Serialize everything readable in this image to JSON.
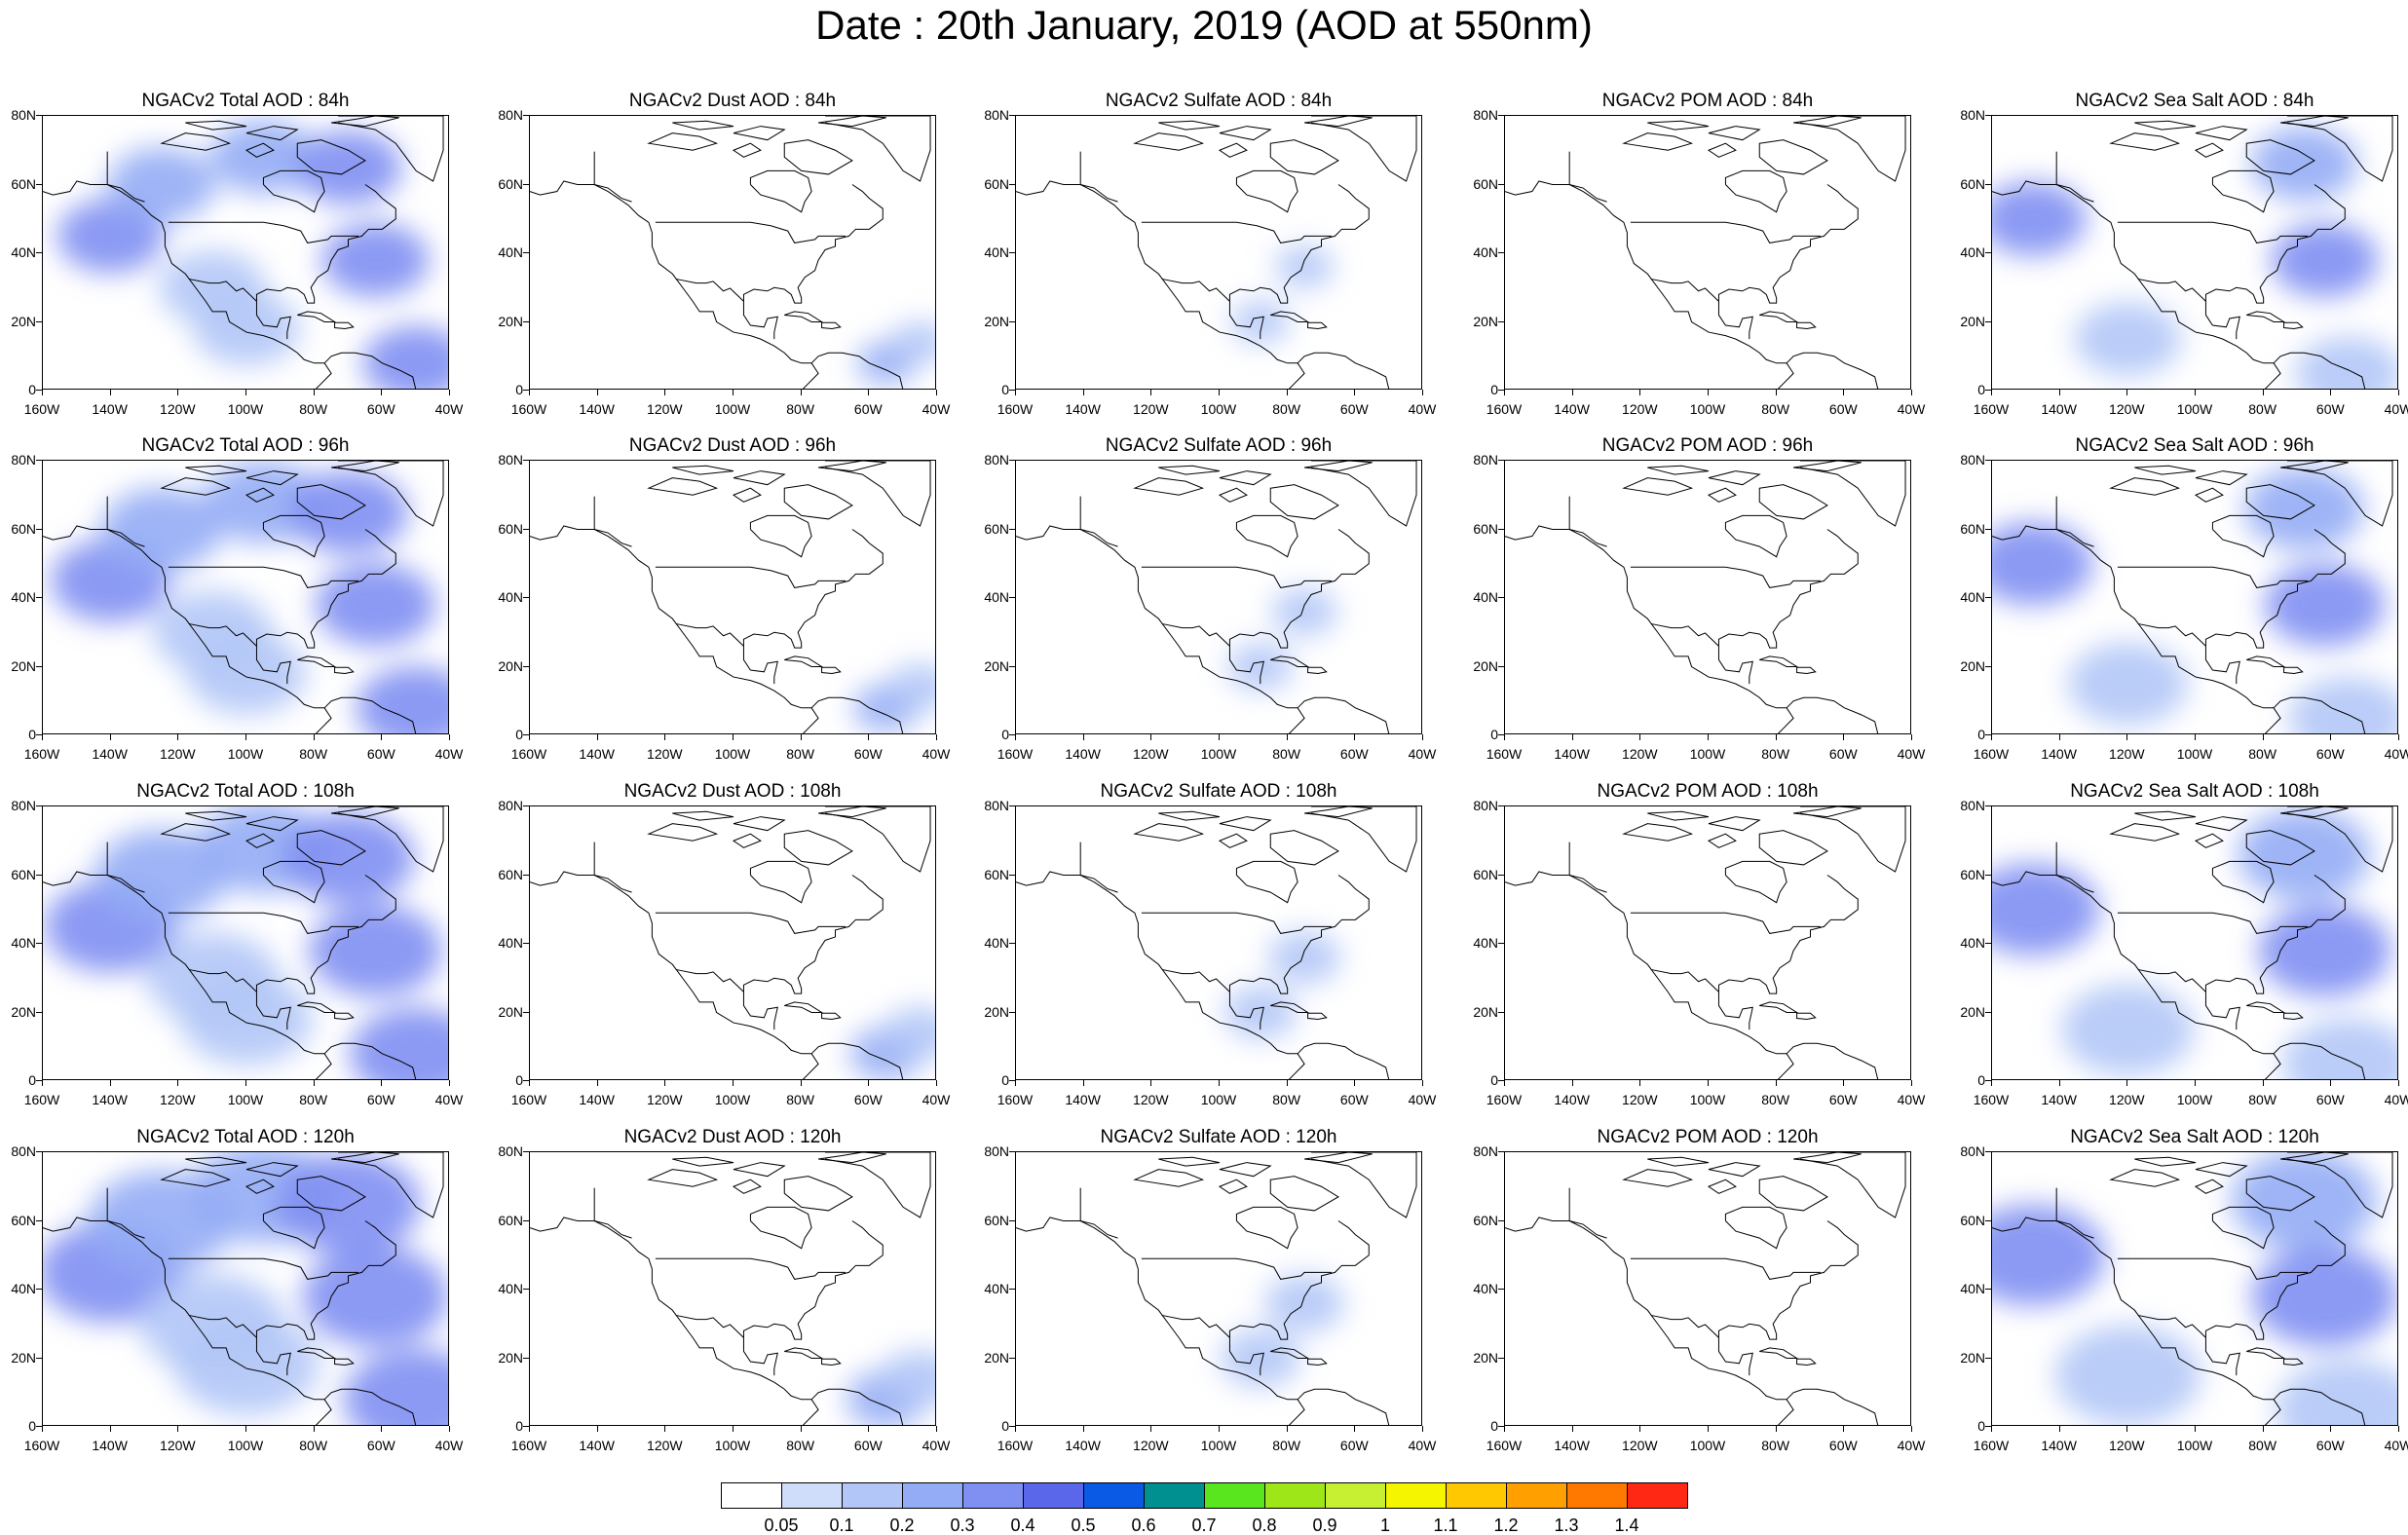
{
  "title": "Date : 20th January, 2019 (AOD at 550nm)",
  "panels": [
    [
      "NGACv2 Total AOD : 84h",
      "NGACv2 Dust AOD : 84h",
      "NGACv2 Sulfate AOD : 84h",
      "NGACv2 POM AOD : 84h",
      "NGACv2 Sea Salt AOD : 84h"
    ],
    [
      "NGACv2 Total AOD : 96h",
      "NGACv2 Dust AOD : 96h",
      "NGACv2 Sulfate AOD : 96h",
      "NGACv2 POM AOD : 96h",
      "NGACv2 Sea Salt AOD : 96h"
    ],
    [
      "NGACv2 Total AOD : 108h",
      "NGACv2 Dust AOD : 108h",
      "NGACv2 Sulfate AOD : 108h",
      "NGACv2 POM AOD : 108h",
      "NGACv2 Sea Salt AOD : 108h"
    ],
    [
      "NGACv2 Total AOD : 120h",
      "NGACv2 Dust AOD : 120h",
      "NGACv2 Sulfate AOD : 120h",
      "NGACv2 POM AOD : 120h",
      "NGACv2 Sea Salt  AOD : 120h"
    ]
  ],
  "lat_ticks": [
    "80N",
    "60N",
    "40N",
    "20N",
    "0"
  ],
  "lon_ticks": [
    "160W",
    "140W",
    "120W",
    "100W",
    "80W",
    "60W",
    "40W"
  ],
  "colorbar": {
    "labels": [
      "0.05",
      "0.1",
      "0.2",
      "0.3",
      "0.4",
      "0.5",
      "0.6",
      "0.7",
      "0.8",
      "0.9",
      "1",
      "1.1",
      "1.2",
      "1.3",
      "1.4"
    ],
    "colors": [
      "#ffffff",
      "#cfdcfa",
      "#b2c6f7",
      "#94acf5",
      "#7f8ff2",
      "#5a67ea",
      "#0a5ae6",
      "#009090",
      "#5ae61e",
      "#9fe619",
      "#c8f032",
      "#f5f500",
      "#ffc800",
      "#ffa000",
      "#ff7800",
      "#ff2814"
    ]
  },
  "aod_fields": {
    "total": [
      {
        "lon": -140,
        "lat": 45,
        "value": 0.3
      },
      {
        "lon": -125,
        "lat": 60,
        "value": 0.2
      },
      {
        "lon": -95,
        "lat": 68,
        "value": 0.2
      },
      {
        "lon": -70,
        "lat": 65,
        "value": 0.3
      },
      {
        "lon": -62,
        "lat": 38,
        "value": 0.3
      },
      {
        "lon": -50,
        "lat": 8,
        "value": 0.3
      },
      {
        "lon": -100,
        "lat": 18,
        "value": 0.1
      },
      {
        "lon": -110,
        "lat": 30,
        "value": 0.1
      }
    ],
    "dust": [
      {
        "lon": -55,
        "lat": 8,
        "value": 0.2
      },
      {
        "lon": -45,
        "lat": 14,
        "value": 0.1
      }
    ],
    "sulfate": [
      {
        "lon": -75,
        "lat": 36,
        "value": 0.1
      },
      {
        "lon": -88,
        "lat": 20,
        "value": 0.1
      }
    ],
    "pom": [],
    "seasalt": [
      {
        "lon": -148,
        "lat": 50,
        "value": 0.3
      },
      {
        "lon": -68,
        "lat": 66,
        "value": 0.2
      },
      {
        "lon": -62,
        "lat": 38,
        "value": 0.3
      },
      {
        "lon": -55,
        "lat": 5,
        "value": 0.1
      },
      {
        "lon": -120,
        "lat": 15,
        "value": 0.1
      }
    ]
  }
}
